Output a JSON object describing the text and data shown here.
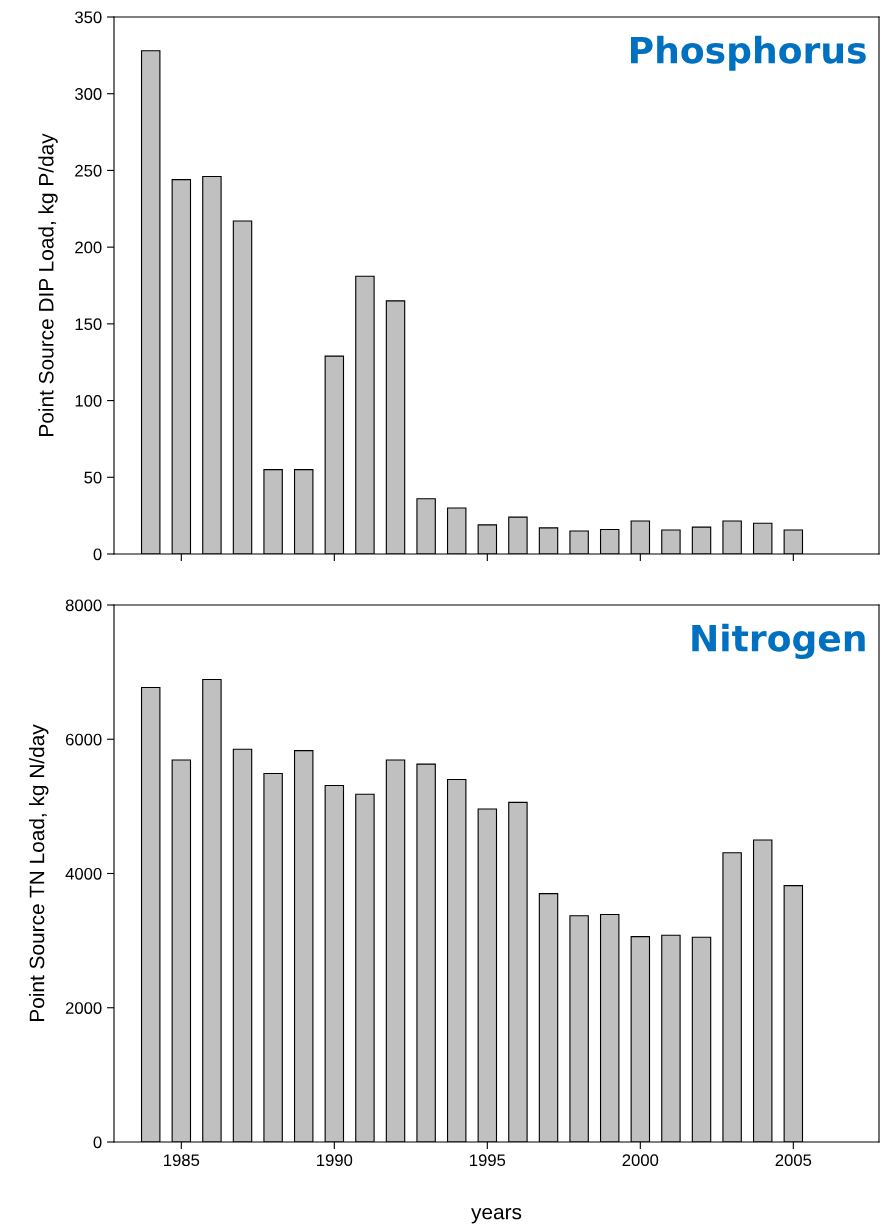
{
  "chart_data": [
    {
      "type": "bar",
      "title": "Phosphorus",
      "ylabel": "Point Source DIP Load, kg P/day",
      "x": [
        1984,
        1985,
        1986,
        1987,
        1988,
        1989,
        1990,
        1991,
        1992,
        1993,
        1994,
        1995,
        1996,
        1997,
        1998,
        1999,
        2000,
        2001,
        2002,
        2003,
        2004,
        2005
      ],
      "values": [
        328,
        244,
        246,
        217,
        55,
        55,
        129,
        181,
        165,
        36,
        30,
        19,
        24,
        17,
        15,
        16,
        21.5,
        15.6,
        17.5,
        21.5,
        20,
        15.6
      ],
      "color": "#c0c0c0",
      "xlim": [
        1982.8,
        2007.8
      ],
      "xticks": [
        1985,
        1990,
        1995,
        2000,
        2005
      ],
      "ylim": [
        0,
        350
      ],
      "yticks": [
        0,
        50,
        100,
        150,
        200,
        250,
        300,
        350
      ],
      "tick_labels": "y",
      "grid": false,
      "legend": false
    },
    {
      "type": "bar",
      "title": "Nitrogen",
      "xlabel": "years",
      "ylabel": "Point Source TN Load, kg N/day",
      "x": [
        1984,
        1985,
        1986,
        1987,
        1988,
        1989,
        1990,
        1991,
        1992,
        1993,
        1994,
        1995,
        1996,
        1997,
        1998,
        1999,
        2000,
        2001,
        2002,
        2003,
        2004,
        2005
      ],
      "values": [
        6770,
        5690,
        6890,
        5850,
        5490,
        5830,
        5310,
        5180,
        5690,
        5630,
        5400,
        4960,
        5060,
        3700,
        3370,
        3390,
        3060,
        3080,
        3050,
        4310,
        4500,
        3820
      ],
      "color": "#c0c0c0",
      "xlim": [
        1982.8,
        2007.8
      ],
      "xticks": [
        1985,
        1990,
        1995,
        2000,
        2005
      ],
      "ylim": [
        0,
        8000
      ],
      "yticks": [
        0,
        2000,
        4000,
        6000,
        8000
      ],
      "grid": false,
      "legend": false
    }
  ]
}
